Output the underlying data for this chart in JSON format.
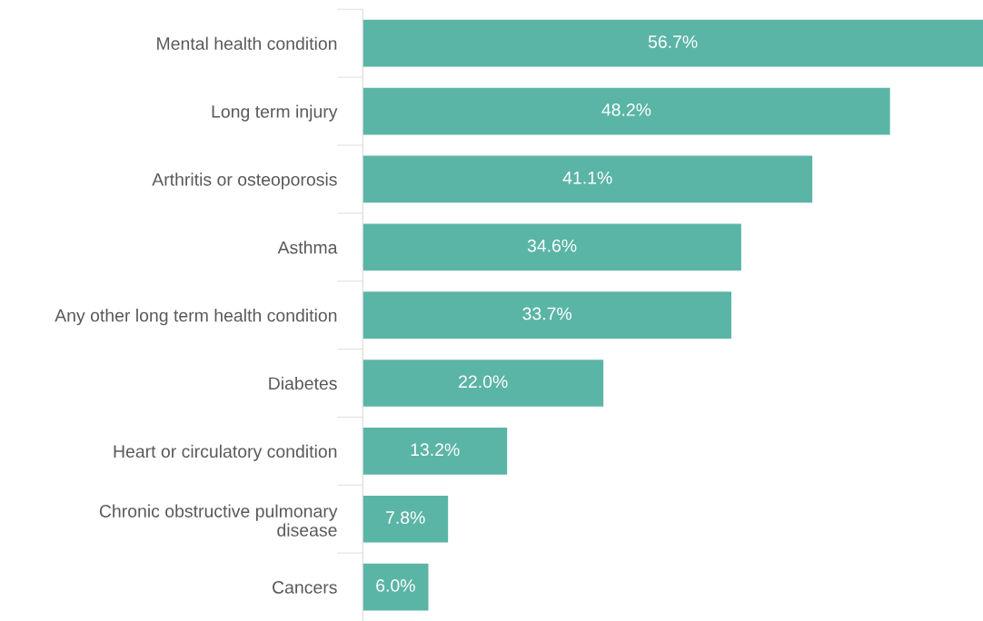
{
  "chart_data": {
    "type": "bar",
    "orientation": "horizontal",
    "categories": [
      "Mental health condition",
      "Long term injury",
      "Arthritis or osteoporosis",
      "Asthma",
      "Any other long term health condition",
      "Diabetes",
      "Heart or circulatory condition",
      "Chronic obstructive pulmonary\ndisease",
      "Cancers"
    ],
    "values": [
      56.7,
      48.2,
      41.1,
      34.6,
      33.7,
      22.0,
      13.2,
      7.8,
      6.0
    ],
    "value_labels": [
      "56.7%",
      "48.2%",
      "41.1%",
      "34.6%",
      "33.7%",
      "22.0%",
      "13.2%",
      "7.8%",
      "6.0%"
    ],
    "color": "#5bb5a6",
    "xlim": [
      0,
      56.7
    ],
    "tick_labels": "y",
    "grid": false,
    "legend": false
  }
}
